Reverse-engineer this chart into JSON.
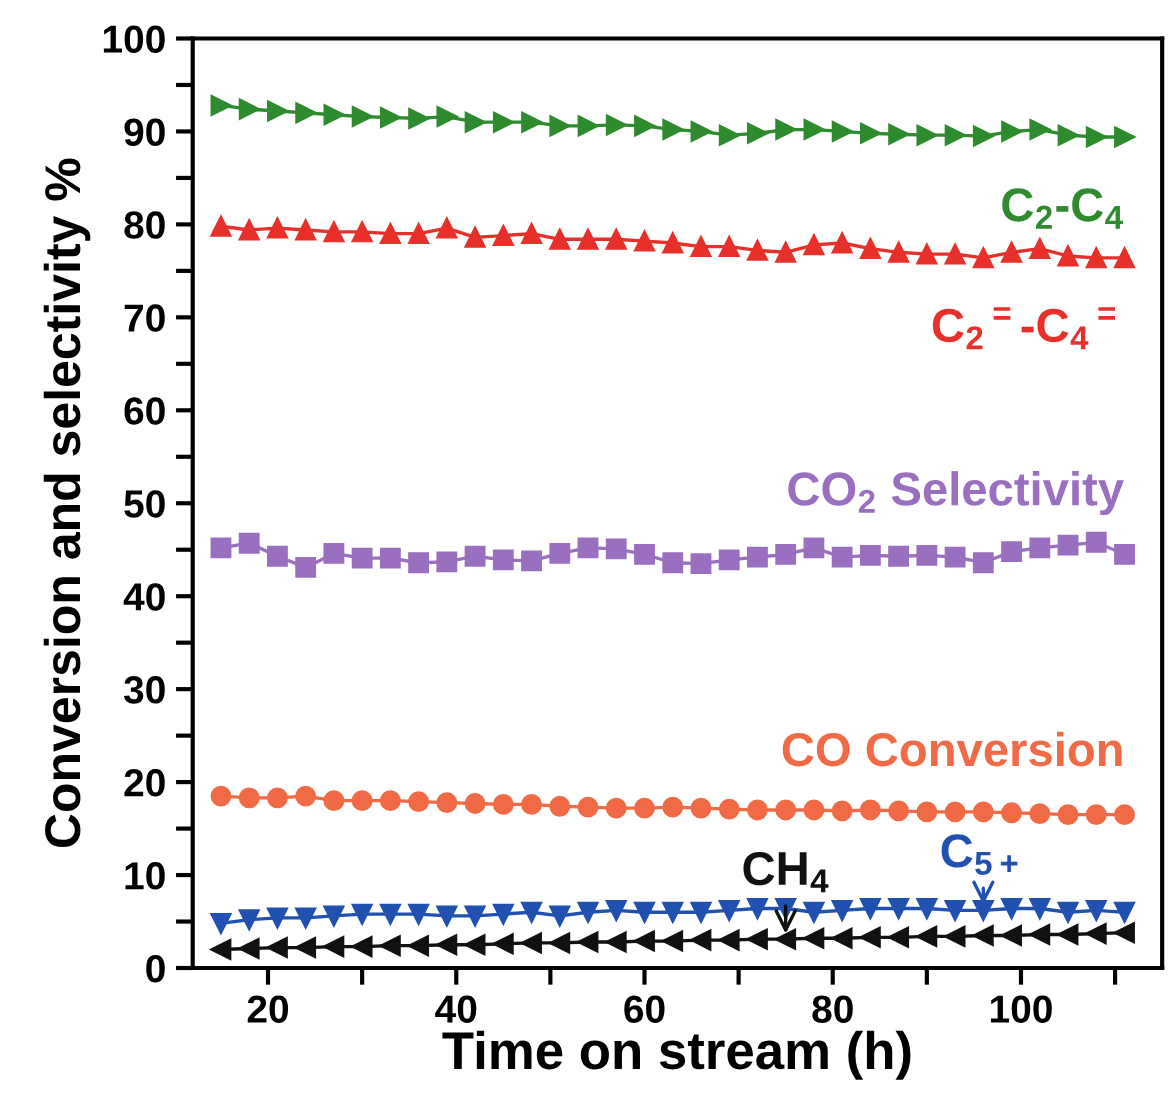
{
  "chart_data": {
    "type": "line",
    "xlabel": "Time on stream (h)",
    "ylabel": "Conversion and selectivity %",
    "x": [
      15,
      18,
      21,
      24,
      27,
      30,
      33,
      36,
      39,
      42,
      45,
      48,
      51,
      54,
      57,
      60,
      63,
      66,
      69,
      72,
      75,
      78,
      81,
      84,
      87,
      90,
      93,
      96,
      99,
      102,
      105,
      108,
      111
    ],
    "xlim": [
      12,
      115
    ],
    "ylim": [
      0,
      100
    ],
    "xticks": [
      20,
      {
        "value": 30,
        "label": null
      },
      40,
      {
        "value": 50,
        "label": null
      },
      60,
      {
        "value": 70,
        "label": null
      },
      80,
      {
        "value": 90,
        "label": null
      },
      100,
      {
        "value": 110,
        "label": null
      }
    ],
    "yticks": [
      0,
      {
        "value": 5,
        "label": null
      },
      10,
      {
        "value": 15,
        "label": null
      },
      20,
      {
        "value": 25,
        "label": null
      },
      30,
      {
        "value": 35,
        "label": null
      },
      40,
      {
        "value": 45,
        "label": null
      },
      50,
      {
        "value": 55,
        "label": null
      },
      60,
      {
        "value": 65,
        "label": null
      },
      70,
      {
        "value": 75,
        "label": null
      },
      80,
      {
        "value": 85,
        "label": null
      },
      90,
      {
        "value": 95,
        "label": null
      },
      100
    ],
    "grid": false,
    "series": [
      {
        "color": "#2e8b2e",
        "marker": "triangle_right",
        "values": [
          92.8,
          92.4,
          92.2,
          92.0,
          91.8,
          91.6,
          91.5,
          91.4,
          91.6,
          91.0,
          91.0,
          91.0,
          90.6,
          90.6,
          90.7,
          90.6,
          90.2,
          90.0,
          89.6,
          89.8,
          90.2,
          90.2,
          90.0,
          89.8,
          89.7,
          89.6,
          89.6,
          89.5,
          90.0,
          90.2,
          89.6,
          89.4,
          89.4
        ]
      },
      {
        "color": "#e8302a",
        "marker": "triangle",
        "values": [
          79.8,
          79.4,
          79.6,
          79.4,
          79.2,
          79.2,
          79.0,
          79.0,
          79.6,
          78.6,
          78.8,
          79.0,
          78.4,
          78.4,
          78.4,
          78.2,
          78.0,
          77.6,
          77.6,
          77.2,
          77.0,
          77.8,
          78.0,
          77.4,
          77.0,
          76.8,
          76.8,
          76.4,
          77.0,
          77.4,
          76.6,
          76.4,
          76.4
        ]
      },
      {
        "color": "#9b6fc0",
        "marker": "square",
        "values": [
          45.2,
          45.7,
          44.3,
          43.1,
          44.6,
          44.1,
          44.1,
          43.6,
          43.7,
          44.3,
          43.9,
          43.8,
          44.6,
          45.2,
          45.1,
          44.5,
          43.6,
          43.5,
          43.9,
          44.2,
          44.5,
          45.2,
          44.2,
          44.4,
          44.3,
          44.4,
          44.2,
          43.6,
          44.8,
          45.2,
          45.5,
          45.8,
          44.5
        ]
      },
      {
        "color": "#f06a45",
        "marker": "circle",
        "values": [
          18.5,
          18.3,
          18.3,
          18.5,
          18.0,
          18.0,
          18.0,
          17.9,
          17.8,
          17.7,
          17.6,
          17.6,
          17.4,
          17.3,
          17.2,
          17.2,
          17.3,
          17.2,
          17.1,
          17.0,
          17.0,
          17.0,
          16.9,
          17.0,
          16.9,
          16.8,
          16.8,
          16.8,
          16.7,
          16.6,
          16.5,
          16.5,
          16.5
        ]
      },
      {
        "color": "#2151b0",
        "marker": "triangle_down",
        "values": [
          4.8,
          5.2,
          5.4,
          5.4,
          5.6,
          5.8,
          5.8,
          5.8,
          5.6,
          5.6,
          5.8,
          6.0,
          5.6,
          6.0,
          6.2,
          6.0,
          6.0,
          6.0,
          6.2,
          6.4,
          6.4,
          6.0,
          6.2,
          6.4,
          6.4,
          6.4,
          6.2,
          6.2,
          6.4,
          6.4,
          6.0,
          6.2,
          6.0
        ]
      },
      {
        "color": "#111111",
        "marker": "triangle_left",
        "values": [
          2.0,
          2.1,
          2.2,
          2.2,
          2.3,
          2.3,
          2.4,
          2.4,
          2.5,
          2.5,
          2.6,
          2.7,
          2.7,
          2.8,
          2.8,
          2.9,
          2.9,
          3.0,
          3.0,
          3.1,
          3.1,
          3.2,
          3.2,
          3.3,
          3.3,
          3.4,
          3.4,
          3.5,
          3.5,
          3.6,
          3.6,
          3.7,
          3.8
        ]
      }
    ],
    "annotations": [
      {
        "text": "C$_{2}$-C$_{4}$",
        "x": 111,
        "y": 89.4
      },
      {
        "text": "C$_{2}$$^{=}$-C$_{4}$$^{=}$",
        "x": 111,
        "y": 76.4
      },
      {
        "text": "CO$_{2}$ Selectivity",
        "x": 111,
        "y": 44.5
      },
      {
        "text": "CO Conversion",
        "x": 111,
        "y": 16.5
      },
      {
        "text": "CH$_{4}$",
        "x": 75,
        "y": 3.1
      },
      {
        "text": "C$_{5+}$",
        "x": 96,
        "y": 6.2
      }
    ]
  }
}
